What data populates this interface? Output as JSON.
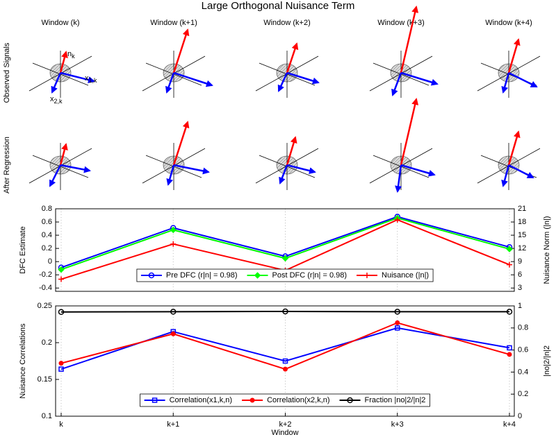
{
  "title": "Large Orthogonal Nuisance Term",
  "diagram": {
    "columns": [
      "Window (k)",
      "Window (k+1)",
      "Window (k+2)",
      "Window (k+3)",
      "Window (k+4)"
    ],
    "rows": [
      "Observed Signals",
      "After Regression"
    ],
    "labels": [
      {
        "base": "n",
        "sub": "k"
      },
      {
        "base": "x",
        "sub": "1,k"
      },
      {
        "base": "x",
        "sub": "2,k"
      }
    ]
  },
  "chart_data": [
    {
      "type": "line",
      "ylabel": "DFC Estimate",
      "y2label": "Nuisance Norm (|n|)",
      "ylim": [
        -0.45,
        0.8
      ],
      "yticks": [
        -0.4,
        -0.2,
        0,
        0.2,
        0.4,
        0.6,
        0.8
      ],
      "y2lim": [
        2.25,
        21
      ],
      "y2ticks": [
        3,
        6,
        9,
        12,
        15,
        18,
        21
      ],
      "ylabel_color": "#0000ff",
      "y2label_color": "#ff0000",
      "grid": "x",
      "legend": "lower center",
      "series": [
        {
          "name": "Pre DFC (r|n| = 0.98)",
          "color": "#0000ff",
          "marker": "circle",
          "values": [
            -0.09,
            0.51,
            0.08,
            0.68,
            0.22
          ]
        },
        {
          "name": "Post DFC (r|n| = 0.98)",
          "color": "#00ff00",
          "marker": "diamond",
          "values": [
            -0.12,
            0.48,
            0.05,
            0.66,
            0.19
          ]
        },
        {
          "name": "Nuisance (|n|)",
          "color": "#ff0000",
          "marker": "plus",
          "axis": "y2",
          "values": [
            5,
            13,
            7,
            18.5,
            8.3
          ]
        }
      ]
    },
    {
      "type": "line",
      "xlabel": "Window",
      "categories": [
        "k",
        "k+1",
        "k+2",
        "k+3",
        "k+4"
      ],
      "ylabel": "Nuisance Correlations",
      "y2label": "|no|2/|n|2",
      "ylim": [
        0.1,
        0.25
      ],
      "yticks": [
        0.1,
        0.15,
        0.2,
        0.25
      ],
      "y2lim": [
        0,
        1
      ],
      "y2ticks": [
        0,
        0.2,
        0.4,
        0.6,
        0.8,
        1
      ],
      "ylabel_color": "#0000ff",
      "y2label_color": "#000000",
      "grid": "x",
      "legend": "lower center",
      "series": [
        {
          "name": "Correlation(x1,k,n)",
          "color": "#0000ff",
          "marker": "square",
          "values": [
            0.164,
            0.215,
            0.175,
            0.22,
            0.193
          ]
        },
        {
          "name": "Correlation(x2,k,n)",
          "color": "#ff0000",
          "marker": "dot",
          "values": [
            0.172,
            0.212,
            0.164,
            0.227,
            0.184
          ]
        },
        {
          "name": "Fraction |no|2/|n|2",
          "color": "#000000",
          "marker": "circle",
          "axis": "y2",
          "values": [
            0.945,
            0.947,
            0.95,
            0.947,
            0.947
          ]
        }
      ]
    }
  ]
}
